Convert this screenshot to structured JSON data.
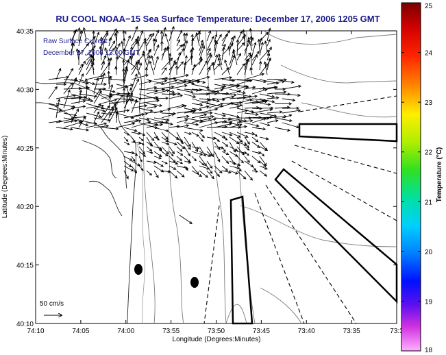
{
  "title": "RU COOL  NOAA−15  Sea Surface Temperature:  December 17, 2006 1205 GMT",
  "annotation": {
    "line1": "Raw Surface Current:",
    "line2": "December 17, 2006 13:00 GMT"
  },
  "x_axis": {
    "label": "Longitude (Degrees:Minutes)",
    "ticks": [
      "74:10",
      "74:05",
      "74:00",
      "73:55",
      "73:50",
      "73:45",
      "73:40",
      "73:35",
      "73:3"
    ]
  },
  "y_axis": {
    "label": "Latitude (Degrees:Minutes)",
    "ticks": [
      "40:35",
      "40:30",
      "40:25",
      "40:20",
      "40:15",
      "40:10"
    ]
  },
  "scale_arrow_label": "50 cm/s",
  "colorbar": {
    "label": "Temperature (°C)",
    "ticks": [
      "25",
      "24",
      "23",
      "22",
      "21",
      "20",
      "19",
      "18"
    ],
    "min": 18,
    "max": 25
  },
  "colors": {
    "title_text": "#1a1a8c",
    "contour": "#7a7a7a",
    "coast": "#222222",
    "arrows": "#000000"
  }
}
